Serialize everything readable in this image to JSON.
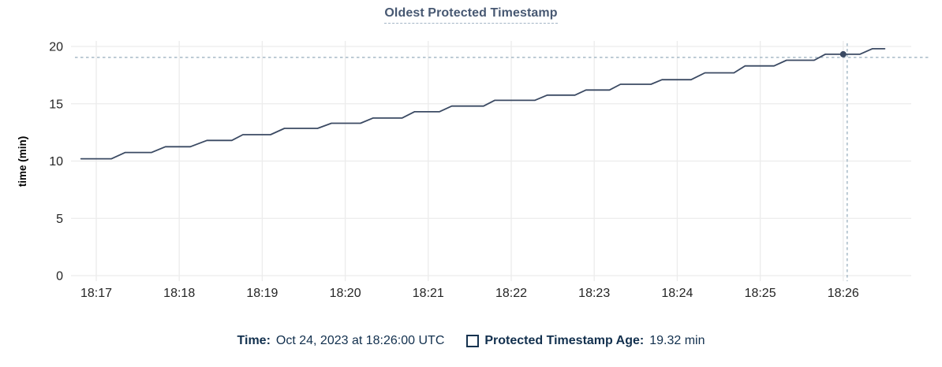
{
  "chart_data": {
    "type": "line",
    "title": "Oldest Protected Timestamp",
    "xlabel": "",
    "ylabel": "time (min)",
    "ylim": [
      0,
      20
    ],
    "yticks": [
      0,
      5,
      10,
      15,
      20
    ],
    "xticks": [
      "18:17",
      "18:18",
      "18:19",
      "18:20",
      "18:21",
      "18:22",
      "18:23",
      "18:24",
      "18:25",
      "18:26"
    ],
    "grid": true,
    "legend_position": "bottom",
    "series": [
      {
        "name": "Protected Timestamp Age",
        "unit": "min",
        "points": [
          [
            "18:16:49",
            10.2
          ],
          [
            "18:17:11",
            10.2
          ],
          [
            "18:17:21",
            10.75
          ],
          [
            "18:17:40",
            10.75
          ],
          [
            "18:17:50",
            11.25
          ],
          [
            "18:18:08",
            11.25
          ],
          [
            "18:18:20",
            11.8
          ],
          [
            "18:18:38",
            11.8
          ],
          [
            "18:18:46",
            12.3
          ],
          [
            "18:19:06",
            12.3
          ],
          [
            "18:19:16",
            12.85
          ],
          [
            "18:19:40",
            12.85
          ],
          [
            "18:19:50",
            13.3
          ],
          [
            "18:20:11",
            13.3
          ],
          [
            "18:20:20",
            13.75
          ],
          [
            "18:20:41",
            13.75
          ],
          [
            "18:20:50",
            14.3
          ],
          [
            "18:21:08",
            14.3
          ],
          [
            "18:21:17",
            14.8
          ],
          [
            "18:21:40",
            14.8
          ],
          [
            "18:21:48",
            15.3
          ],
          [
            "18:22:17",
            15.3
          ],
          [
            "18:22:26",
            15.75
          ],
          [
            "18:22:46",
            15.75
          ],
          [
            "18:22:54",
            16.2
          ],
          [
            "18:23:11",
            16.2
          ],
          [
            "18:23:19",
            16.7
          ],
          [
            "18:23:41",
            16.7
          ],
          [
            "18:23:49",
            17.1
          ],
          [
            "18:24:10",
            17.1
          ],
          [
            "18:24:20",
            17.7
          ],
          [
            "18:24:41",
            17.7
          ],
          [
            "18:24:49",
            18.3
          ],
          [
            "18:25:10",
            18.3
          ],
          [
            "18:25:19",
            18.8
          ],
          [
            "18:25:39",
            18.8
          ],
          [
            "18:25:47",
            19.32
          ],
          [
            "18:26:12",
            19.32
          ],
          [
            "18:26:21",
            19.8
          ],
          [
            "18:26:30",
            19.8
          ]
        ]
      }
    ],
    "highlight_point": {
      "time": "18:26:00",
      "value": 19.32
    },
    "crosshair": true
  },
  "footer": {
    "time_label": "Time:",
    "time_value": "Oct 24, 2023 at 18:26:00 UTC",
    "age_label": "Protected Timestamp Age:",
    "age_value": "19.32 min"
  },
  "colors": {
    "line": "#3b4a63",
    "marker": "#3b4a63",
    "grid": "#ececec",
    "crosshair": "#a7bac7",
    "title_text": "#475872",
    "tick_text": "#242424",
    "axis_label_text": "#000000",
    "footer_text": "#12304e"
  }
}
